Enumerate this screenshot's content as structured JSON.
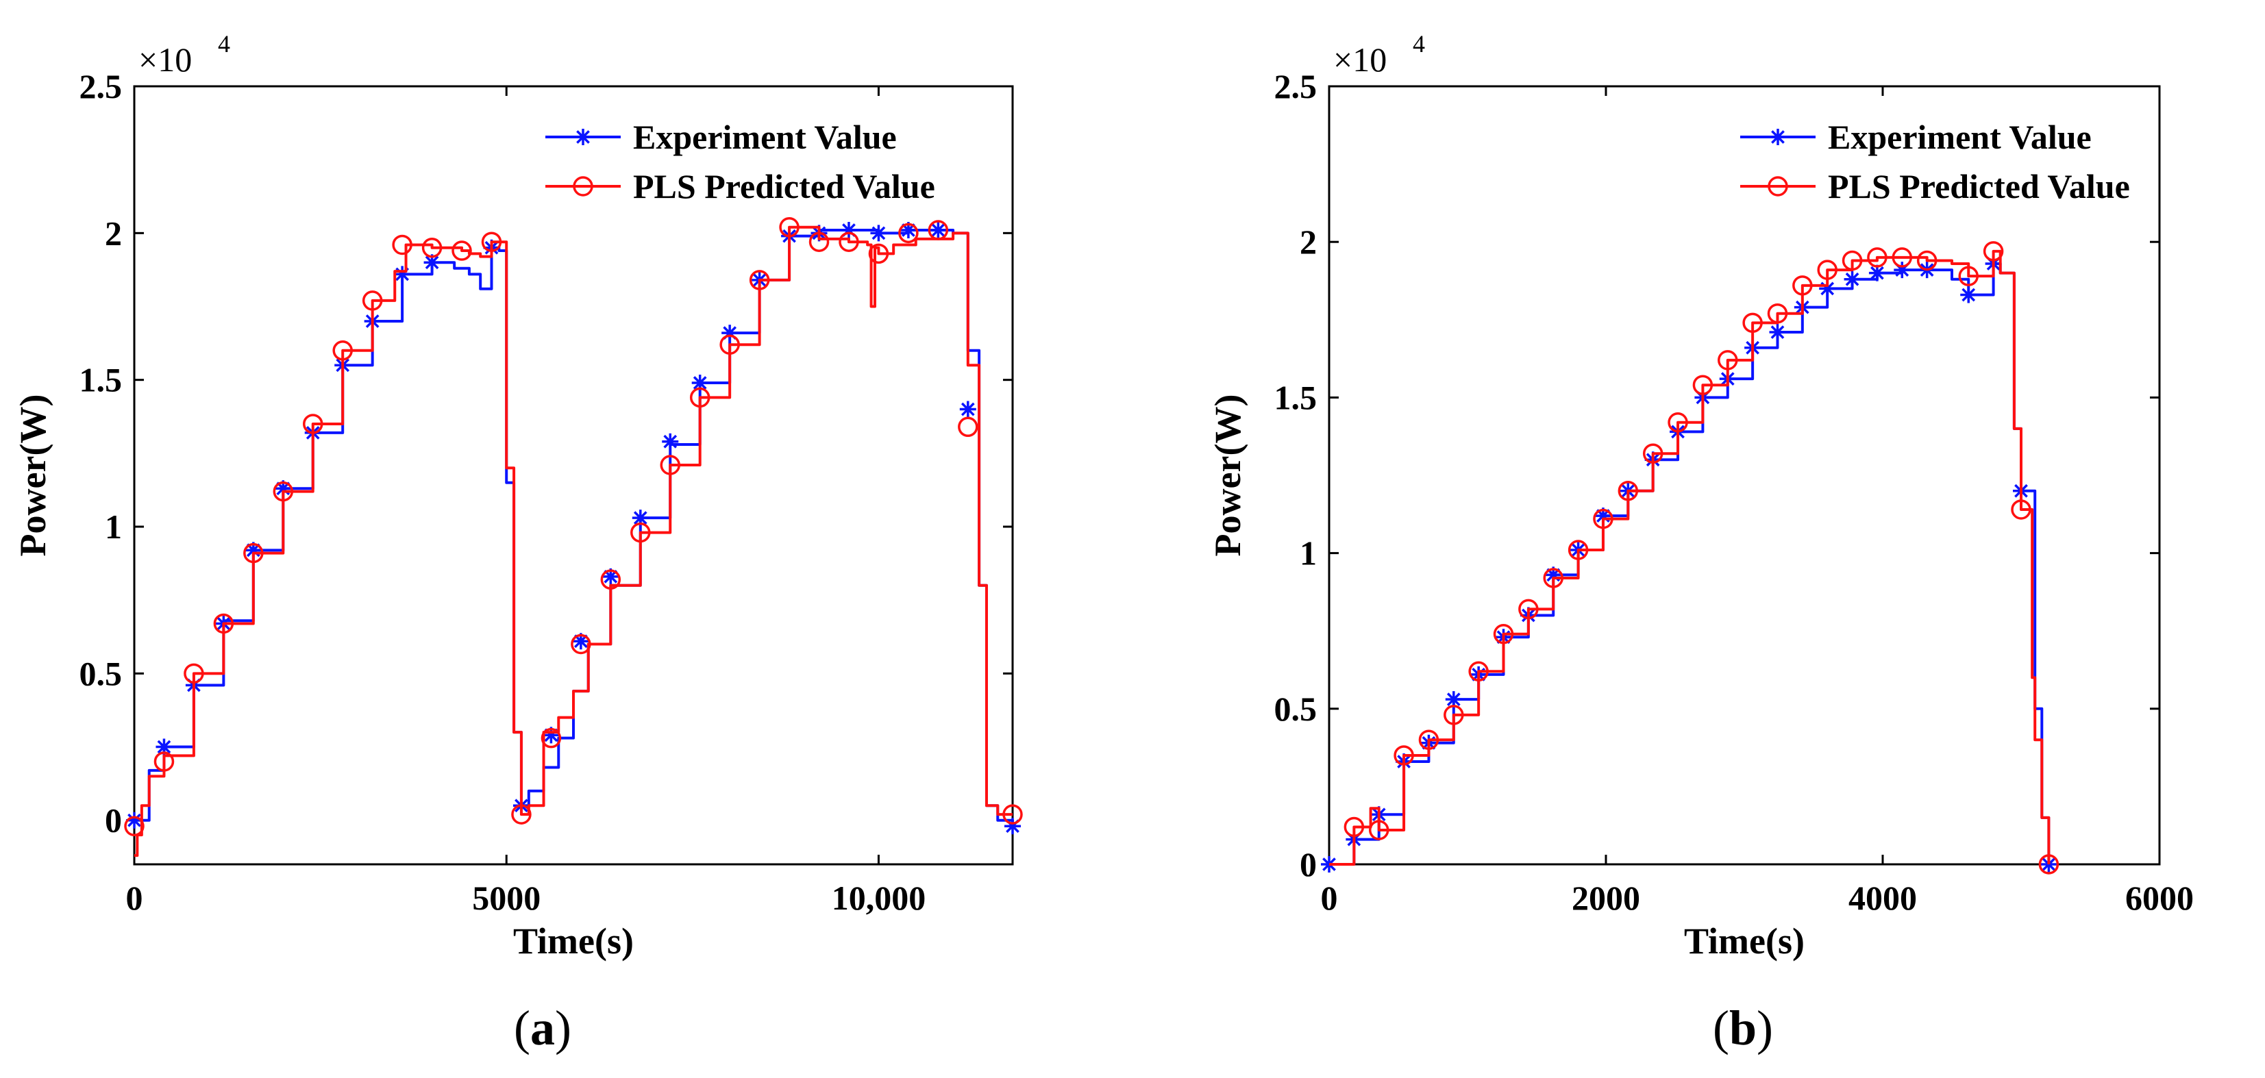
{
  "chart_data": [
    {
      "type": "line",
      "panel": "a",
      "xlabel": "Time(s)",
      "ylabel": "Power(W)",
      "exponent_label": "×10",
      "exponent_power": "4",
      "xlim": [
        0,
        11800
      ],
      "ylim": [
        -0.15,
        2.5
      ],
      "xticks": [
        0,
        5000,
        10000
      ],
      "xtick_labels": [
        "0",
        "5000",
        "10,000"
      ],
      "yticks": [
        0,
        0.5,
        1,
        1.5,
        2,
        2.5
      ],
      "ytick_labels": [
        "0",
        "0.5",
        "1",
        "1.5",
        "2",
        "2.5"
      ],
      "legend": [
        "Experiment Value",
        "PLS Predicted Value"
      ],
      "legend_position": "top-right",
      "series": [
        {
          "name": "Experiment Value",
          "color": "#0a14ff",
          "marker": "star",
          "x": [
            0,
            200,
            400,
            800,
            1200,
            1600,
            2000,
            2400,
            2800,
            3200,
            3600,
            4000,
            4300,
            4500,
            4650,
            4800,
            4900,
            5000,
            5100,
            5200,
            5300,
            5500,
            5700,
            5900,
            6100,
            6400,
            6800,
            7200,
            7600,
            8000,
            8400,
            8800,
            9200,
            9600,
            10000,
            10400,
            10800,
            11000,
            11050,
            11200,
            11350,
            11450,
            11600,
            11800
          ],
          "y": [
            0.0,
            0.17,
            0.25,
            0.46,
            0.68,
            0.92,
            1.13,
            1.32,
            1.55,
            1.7,
            1.86,
            1.9,
            1.88,
            1.86,
            1.81,
            1.95,
            1.94,
            1.15,
            0.3,
            0.05,
            0.1,
            0.18,
            0.28,
            0.44,
            0.6,
            0.8,
            1.03,
            1.28,
            1.49,
            1.66,
            1.84,
            1.99,
            2.01,
            2.01,
            2.0,
            2.01,
            2.01,
            2.0,
            2.0,
            1.6,
            0.8,
            0.05,
            0.0,
            -0.02
          ],
          "marker_x": [
            0,
            400,
            800,
            1200,
            1600,
            2000,
            2400,
            2800,
            3200,
            3600,
            4000,
            4800,
            5200,
            5600,
            6000,
            6400,
            6800,
            7200,
            7600,
            8000,
            8400,
            8800,
            9200,
            9600,
            10000,
            10400,
            10800,
            11200,
            11800
          ],
          "marker_y": [
            0.0,
            0.25,
            0.46,
            0.67,
            0.92,
            1.13,
            1.32,
            1.55,
            1.7,
            1.86,
            1.9,
            1.95,
            0.05,
            0.29,
            0.61,
            0.83,
            1.03,
            1.29,
            1.49,
            1.66,
            1.84,
            1.99,
            2.0,
            2.01,
            2.0,
            2.01,
            2.01,
            1.4,
            -0.02
          ]
        },
        {
          "name": "PLS Predicted Value",
          "color": "#ff1010",
          "marker": "circle",
          "x": [
            0,
            40,
            100,
            200,
            400,
            800,
            1200,
            1600,
            2000,
            2400,
            2800,
            3200,
            3500,
            3650,
            4000,
            4200,
            4400,
            4500,
            4650,
            4800,
            4900,
            5000,
            5100,
            5200,
            5300,
            5500,
            5700,
            5900,
            6100,
            6400,
            6800,
            7200,
            7600,
            8000,
            8400,
            8800,
            9200,
            9600,
            9850,
            9900,
            9950,
            10000,
            10200,
            10500,
            10800,
            11000,
            11050,
            11200,
            11350,
            11450,
            11600,
            11800
          ],
          "y": [
            -0.12,
            -0.05,
            0.05,
            0.15,
            0.22,
            0.5,
            0.67,
            0.91,
            1.12,
            1.35,
            1.6,
            1.77,
            1.87,
            1.96,
            1.95,
            1.95,
            1.94,
            1.93,
            1.92,
            1.97,
            1.97,
            1.2,
            0.3,
            0.02,
            0.05,
            0.3,
            0.35,
            0.44,
            0.6,
            0.8,
            0.98,
            1.21,
            1.44,
            1.62,
            1.84,
            2.02,
            1.98,
            1.97,
            1.96,
            1.75,
            1.95,
            1.93,
            1.96,
            1.98,
            1.98,
            2.0,
            2.0,
            1.55,
            0.8,
            0.05,
            0.02,
            0.02
          ],
          "marker_x": [
            0,
            400,
            800,
            1200,
            1600,
            2000,
            2400,
            2800,
            3200,
            3600,
            4000,
            4400,
            4800,
            5200,
            5600,
            6000,
            6400,
            6800,
            7200,
            7600,
            8000,
            8400,
            8800,
            9200,
            9600,
            10000,
            10400,
            10800,
            11200,
            11800
          ],
          "marker_y": [
            -0.02,
            0.2,
            0.5,
            0.67,
            0.91,
            1.12,
            1.35,
            1.6,
            1.77,
            1.96,
            1.95,
            1.94,
            1.97,
            0.02,
            0.28,
            0.6,
            0.82,
            0.98,
            1.21,
            1.44,
            1.62,
            1.84,
            2.02,
            1.97,
            1.97,
            1.93,
            2.0,
            2.01,
            1.34,
            0.02
          ]
        }
      ]
    },
    {
      "type": "line",
      "panel": "b",
      "xlabel": "Time(s)",
      "ylabel": "Power(W)",
      "exponent_label": "×10",
      "exponent_power": "4",
      "xlim": [
        0,
        6000
      ],
      "ylim": [
        0,
        2.5
      ],
      "xticks": [
        0,
        2000,
        4000,
        6000
      ],
      "xtick_labels": [
        "0",
        "2000",
        "4000",
        "6000"
      ],
      "yticks": [
        0,
        0.5,
        1,
        1.5,
        2,
        2.5
      ],
      "ytick_labels": [
        "0",
        "0.5",
        "1",
        "1.5",
        "2",
        "2.5"
      ],
      "legend": [
        "Experiment Value",
        "PLS Predicted Value"
      ],
      "legend_position": "top-right",
      "series": [
        {
          "name": "Experiment Value",
          "color": "#0a14ff",
          "marker": "star",
          "x": [
            0,
            180,
            360,
            540,
            720,
            900,
            1080,
            1260,
            1440,
            1620,
            1800,
            1980,
            2160,
            2340,
            2520,
            2700,
            2880,
            3060,
            3240,
            3420,
            3600,
            3780,
            3960,
            4140,
            4320,
            4500,
            4620,
            4800,
            4850,
            4950,
            5000,
            5100,
            5150,
            5200
          ],
          "y": [
            0.0,
            0.08,
            0.16,
            0.33,
            0.39,
            0.53,
            0.61,
            0.73,
            0.8,
            0.93,
            1.01,
            1.12,
            1.2,
            1.3,
            1.39,
            1.5,
            1.56,
            1.66,
            1.71,
            1.79,
            1.85,
            1.88,
            1.9,
            1.91,
            1.91,
            1.88,
            1.83,
            1.93,
            1.9,
            1.4,
            1.2,
            0.5,
            0.15,
            0.0
          ],
          "marker_x": [
            0,
            180,
            360,
            540,
            720,
            900,
            1080,
            1260,
            1440,
            1620,
            1800,
            1980,
            2160,
            2340,
            2520,
            2700,
            2880,
            3060,
            3240,
            3420,
            3600,
            3780,
            3960,
            4140,
            4320,
            4620,
            4800,
            5000,
            5200
          ],
          "marker_y": [
            0.0,
            0.08,
            0.16,
            0.33,
            0.39,
            0.53,
            0.61,
            0.73,
            0.8,
            0.93,
            1.01,
            1.12,
            1.2,
            1.3,
            1.39,
            1.5,
            1.56,
            1.66,
            1.71,
            1.79,
            1.85,
            1.88,
            1.9,
            1.91,
            1.91,
            1.83,
            1.93,
            1.2,
            0.0
          ]
        },
        {
          "name": "PLS Predicted Value",
          "color": "#ff1010",
          "marker": "circle",
          "x": [
            0,
            180,
            300,
            360,
            540,
            720,
            900,
            1080,
            1260,
            1440,
            1620,
            1800,
            1980,
            2160,
            2340,
            2520,
            2700,
            2880,
            3060,
            3240,
            3420,
            3600,
            3780,
            3960,
            4140,
            4320,
            4500,
            4620,
            4800,
            4850,
            4950,
            5000,
            5080,
            5100,
            5150,
            5200
          ],
          "y": [
            0.0,
            0.12,
            0.18,
            0.11,
            0.35,
            0.4,
            0.48,
            0.62,
            0.74,
            0.82,
            0.92,
            1.01,
            1.11,
            1.2,
            1.32,
            1.42,
            1.54,
            1.62,
            1.74,
            1.77,
            1.86,
            1.91,
            1.94,
            1.95,
            1.95,
            1.94,
            1.93,
            1.89,
            1.97,
            1.9,
            1.4,
            1.14,
            0.6,
            0.4,
            0.15,
            0.0
          ],
          "marker_x": [
            180,
            360,
            540,
            720,
            900,
            1080,
            1260,
            1440,
            1620,
            1800,
            1980,
            2160,
            2340,
            2520,
            2700,
            2880,
            3060,
            3240,
            3420,
            3600,
            3780,
            3960,
            4140,
            4320,
            4620,
            4800,
            5000,
            5200
          ],
          "marker_y": [
            0.12,
            0.11,
            0.35,
            0.4,
            0.48,
            0.62,
            0.74,
            0.82,
            0.92,
            1.01,
            1.11,
            1.2,
            1.32,
            1.42,
            1.54,
            1.62,
            1.74,
            1.77,
            1.86,
            1.91,
            1.94,
            1.95,
            1.95,
            1.94,
            1.89,
            1.97,
            1.14,
            0.0
          ]
        }
      ]
    }
  ],
  "captions": [
    {
      "open": "(",
      "letter": "a",
      "close": ")"
    },
    {
      "open": "(",
      "letter": "b",
      "close": ")"
    }
  ]
}
